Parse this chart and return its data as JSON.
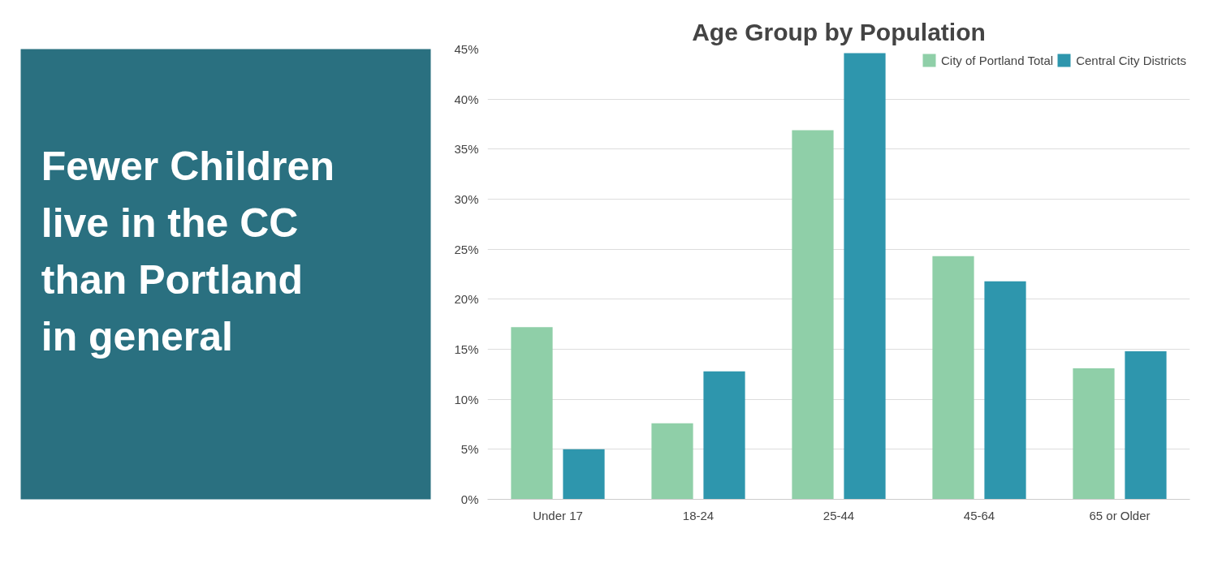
{
  "chart_data": {
    "type": "bar",
    "title": "Age Group by Population",
    "annotations": [
      "Fewer Children live in the CC than Portland in general"
    ],
    "categories": [
      "Under 17",
      "18-24",
      "25-44",
      "45-64",
      "65 or Older"
    ],
    "series": [
      {
        "name": "City of Portland Total",
        "color": "#8fcfa8",
        "values": [
          17.2,
          7.6,
          36.9,
          24.3,
          13.1
        ]
      },
      {
        "name": "Central City Districts",
        "color": "#2e96ad",
        "values": [
          5.0,
          12.8,
          44.6,
          21.8,
          14.8
        ]
      }
    ],
    "ylim": [
      0,
      45
    ],
    "yticks": [
      {
        "value": 0,
        "label": "0%"
      },
      {
        "value": 5,
        "label": "5%"
      },
      {
        "value": 10,
        "label": "10%"
      },
      {
        "value": 15,
        "label": "15%"
      },
      {
        "value": 20,
        "label": "20%"
      },
      {
        "value": 25,
        "label": "25%"
      },
      {
        "value": 30,
        "label": "30%"
      },
      {
        "value": 35,
        "label": "35%"
      },
      {
        "value": 40,
        "label": "40%"
      },
      {
        "value": 45,
        "label": "45%"
      }
    ],
    "grid": "y",
    "legend": "top right"
  }
}
